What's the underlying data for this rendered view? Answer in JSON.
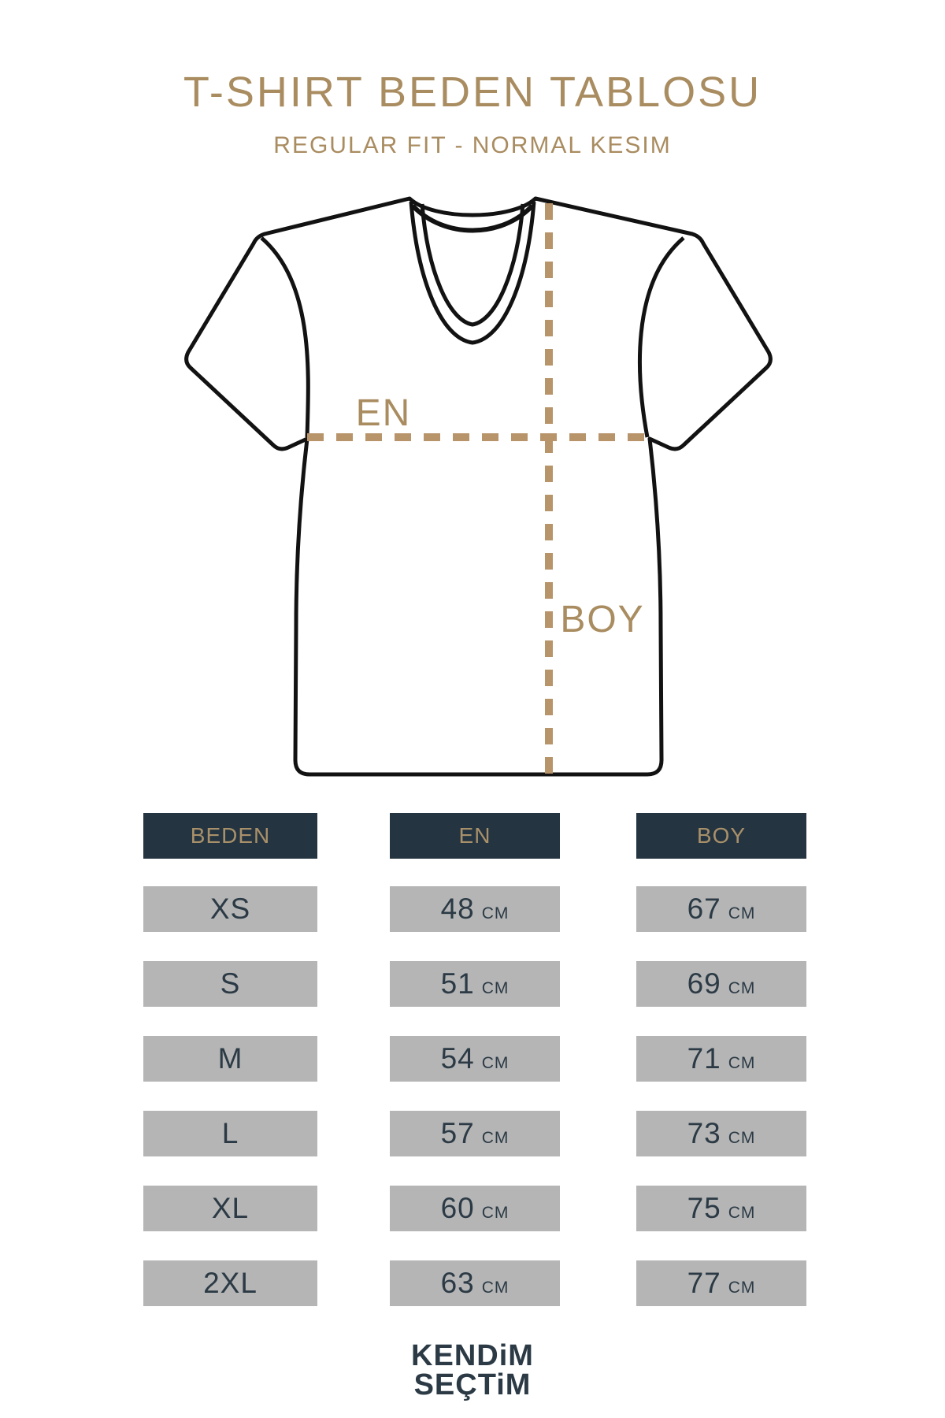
{
  "page": {
    "title": "T-SHIRT BEDEN TABLOSU",
    "subtitle": "REGULAR FIT - NORMAL KESIM"
  },
  "diagram": {
    "width_label": "EN",
    "length_label": "BOY"
  },
  "table": {
    "headers": [
      "BEDEN",
      "EN",
      "BOY"
    ],
    "unit": "CM",
    "rows": [
      {
        "size": "XS",
        "en": "48",
        "boy": "67",
        "unit": "CM"
      },
      {
        "size": "S",
        "en": "51",
        "boy": "69",
        "unit": "CM"
      },
      {
        "size": "M",
        "en": "54",
        "boy": "71",
        "unit": "CM"
      },
      {
        "size": "L",
        "en": "57",
        "boy": "73",
        "unit": "CM"
      },
      {
        "size": "XL",
        "en": "60",
        "boy": "75",
        "unit": "CM"
      },
      {
        "size": "2XL",
        "en": "63",
        "boy": "77",
        "unit": "CM"
      }
    ]
  },
  "chart_data": {
    "type": "table",
    "columns": [
      "BEDEN",
      "EN",
      "BOY"
    ],
    "rows": [
      [
        "XS",
        "48 CM",
        "67 CM"
      ],
      [
        "S",
        "51 CM",
        "69 CM"
      ],
      [
        "M",
        "54 CM",
        "71 CM"
      ],
      [
        "L",
        "57 CM",
        "73 CM"
      ],
      [
        "XL",
        "60 CM",
        "75 CM"
      ],
      [
        "2XL",
        "63 CM",
        "77 CM"
      ]
    ]
  },
  "footer": {
    "logo_line1": "KENDiM",
    "logo_line2": "SEÇTiM"
  },
  "colors": {
    "accent_tan": "#A98C60",
    "dash_tan": "#B8946A",
    "header_navy": "#243440",
    "text_navy": "#2B3A45",
    "cell_gray": "#B5B5B5",
    "outline_black": "#121212"
  }
}
